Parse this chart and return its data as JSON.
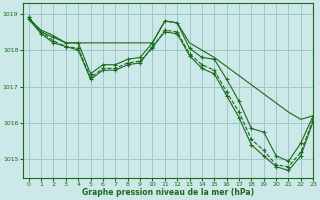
{
  "title": "Graphe pression niveau de la mer (hPa)",
  "background_color": "#cce8e8",
  "grid_color": "#a0c8c8",
  "line_color": "#1a6b1a",
  "xlim": [
    -0.5,
    23
  ],
  "ylim": [
    1014.5,
    1019.3
  ],
  "yticks": [
    1015,
    1016,
    1017,
    1018,
    1019
  ],
  "xticks": [
    0,
    1,
    2,
    3,
    4,
    5,
    6,
    7,
    8,
    9,
    10,
    11,
    12,
    13,
    14,
    15,
    16,
    17,
    18,
    19,
    20,
    21,
    22,
    23
  ],
  "series": [
    {
      "x": [
        0,
        1,
        2,
        3,
        4,
        5,
        6,
        7,
        8,
        9,
        10,
        11,
        12,
        13,
        14,
        15,
        16,
        17,
        18,
        19,
        20,
        21,
        22,
        23
      ],
      "y": [
        1018.85,
        1018.55,
        1018.4,
        1018.2,
        1018.2,
        1018.2,
        1018.2,
        1018.2,
        1018.2,
        1018.2,
        1018.2,
        1018.8,
        1018.75,
        1018.2,
        1018.0,
        1017.8,
        1017.55,
        1017.3,
        1017.05,
        1016.8,
        1016.55,
        1016.3,
        1016.1,
        1016.2
      ],
      "linestyle": "-",
      "marker": "+"
    },
    {
      "x": [
        0,
        1,
        2,
        3,
        4,
        5,
        6,
        7,
        8,
        9,
        10,
        11,
        12,
        13,
        14,
        15,
        16,
        17,
        18,
        19,
        20,
        21,
        22,
        23
      ],
      "y": [
        1018.9,
        1018.5,
        1018.35,
        1018.2,
        1018.2,
        1017.35,
        1017.6,
        1017.6,
        1017.75,
        1017.8,
        1018.2,
        1018.8,
        1018.75,
        1018.05,
        1017.8,
        1017.75,
        1017.2,
        1016.6,
        1015.85,
        1015.75,
        1015.1,
        1014.95,
        1015.45,
        1016.2
      ],
      "linestyle": "-",
      "marker": "+"
    },
    {
      "x": [
        0,
        1,
        2,
        3,
        4,
        5,
        6,
        7,
        8,
        9,
        10,
        11,
        12,
        13,
        14,
        15,
        16,
        17,
        18,
        19,
        20,
        21,
        22,
        23
      ],
      "y": [
        1018.85,
        1018.45,
        1018.2,
        1018.1,
        1018.0,
        1017.2,
        1017.45,
        1017.45,
        1017.6,
        1017.65,
        1018.1,
        1018.5,
        1018.45,
        1017.85,
        1017.5,
        1017.35,
        1016.75,
        1016.15,
        1015.4,
        1015.1,
        1014.8,
        1014.7,
        1015.1,
        1016.05
      ],
      "linestyle": "-",
      "marker": "+"
    },
    {
      "x": [
        0,
        1,
        2,
        3,
        4,
        5,
        6,
        7,
        8,
        9,
        10,
        11,
        12,
        13,
        14,
        15,
        16,
        17,
        18,
        19,
        20,
        21,
        22,
        23
      ],
      "y": [
        1018.9,
        1018.5,
        1018.25,
        1018.1,
        1018.05,
        1017.25,
        1017.5,
        1017.5,
        1017.65,
        1017.7,
        1018.05,
        1018.55,
        1018.5,
        1017.9,
        1017.6,
        1017.45,
        1016.85,
        1016.3,
        1015.55,
        1015.25,
        1014.85,
        1014.8,
        1015.2,
        1016.1
      ],
      "linestyle": "--",
      "marker": "+"
    }
  ]
}
